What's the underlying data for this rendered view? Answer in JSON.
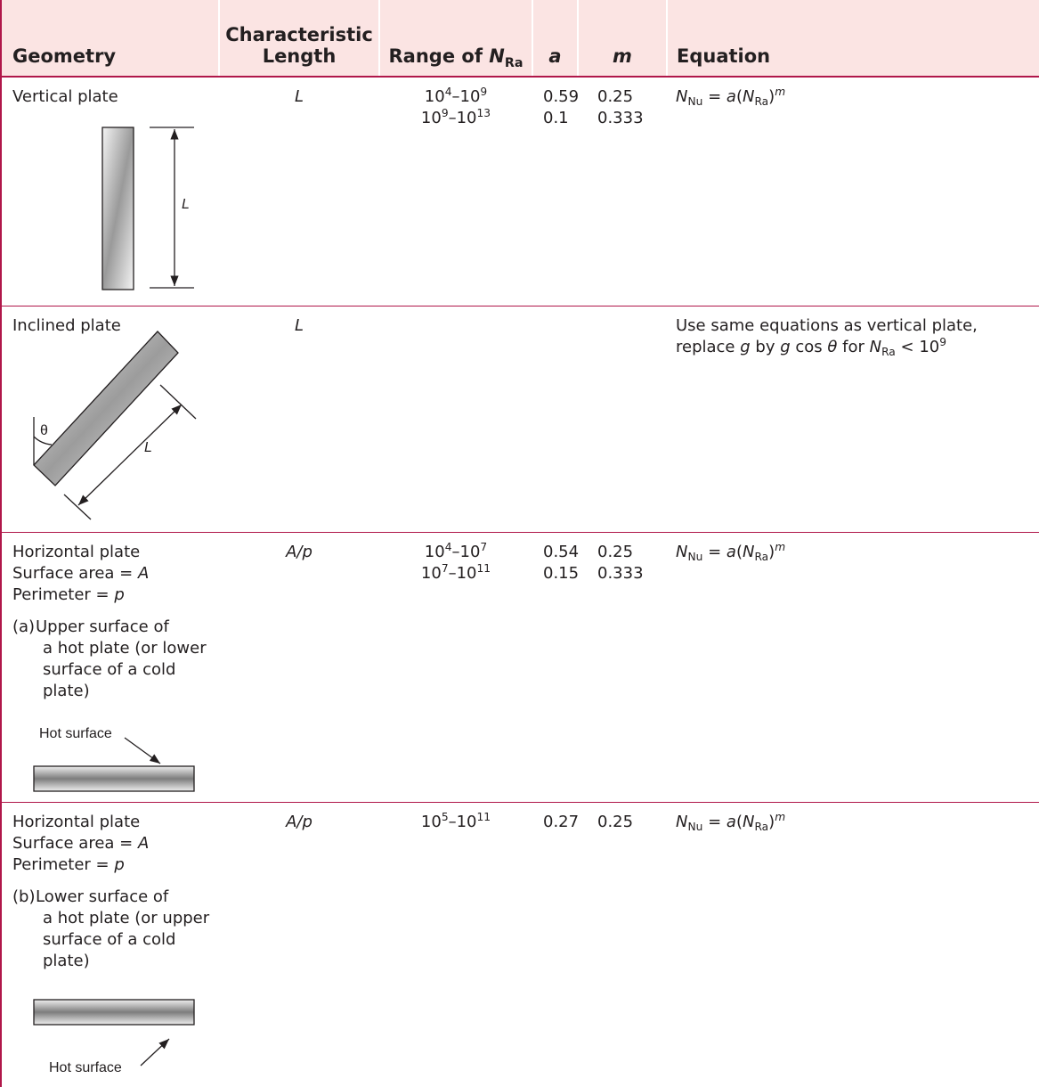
{
  "table": {
    "header": [
      "Geometry",
      "Characteristic Length",
      [
        {
          "text": "Range of "
        },
        {
          "text": "N",
          "style": "i"
        },
        {
          "text": "Ra",
          "style": "sub"
        }
      ],
      [
        {
          "text": "a",
          "style": "i"
        }
      ],
      [
        {
          "text": "m",
          "style": "i"
        }
      ],
      "Equation"
    ],
    "rows": [
      {
        "geometry": {
          "lines": [
            "Vertical plate"
          ],
          "diagram_labels": [
            "L"
          ]
        },
        "length": [
          {
            "text": "L",
            "style": "i"
          }
        ],
        "range": [
          [
            {
              "text": "10"
            },
            {
              "text": "4",
              "style": "sup"
            },
            {
              "text": "–10"
            },
            {
              "text": "9",
              "style": "sup"
            }
          ],
          [
            {
              "text": "10"
            },
            {
              "text": "9",
              "style": "sup"
            },
            {
              "text": "–10"
            },
            {
              "text": "13",
              "style": "sup"
            }
          ]
        ],
        "a": [
          0.59,
          0.1
        ],
        "m": [
          0.25,
          0.333
        ],
        "equation": [
          [
            {
              "text": "N",
              "style": "i"
            },
            {
              "text": "Nu",
              "style": "sub"
            },
            {
              "text": " = "
            },
            {
              "text": "a",
              "style": "i"
            },
            {
              "text": "("
            },
            {
              "text": "N",
              "style": "i"
            },
            {
              "text": "Ra",
              "style": "sub"
            },
            {
              "text": ")"
            },
            {
              "text": "m",
              "style": "i-sup"
            }
          ]
        ]
      },
      {
        "geometry": {
          "lines": [
            "Inclined plate"
          ],
          "diagram_labels": [
            "θ",
            "L"
          ]
        },
        "length": [
          {
            "text": "L",
            "style": "i"
          }
        ],
        "range": [],
        "a": [],
        "m": [],
        "equation": [
          "Use same equations as vertical plate,",
          [
            {
              "text": "replace "
            },
            {
              "text": "g",
              "style": "i"
            },
            {
              "text": " by "
            },
            {
              "text": "g",
              "style": "i"
            },
            {
              "text": " cos "
            },
            {
              "text": "θ",
              "style": "i"
            },
            {
              "text": " for "
            },
            {
              "text": "N",
              "style": "i"
            },
            {
              "text": "Ra",
              "style": "sub"
            },
            {
              "text": " < 10"
            },
            {
              "text": "9",
              "style": "sup"
            }
          ]
        ]
      },
      {
        "geometry": {
          "lines": [
            "Horizontal plate",
            [
              {
                "text": "Surface area = "
              },
              {
                "text": "A",
                "style": "i"
              }
            ],
            [
              {
                "text": "Perimeter = "
              },
              {
                "text": "p",
                "style": "i"
              }
            ]
          ],
          "note": {
            "label": "(a)",
            "lines": [
              "Upper surface of",
              "a hot plate (or lower",
              "surface of a cold plate)"
            ]
          },
          "diagram_labels": [
            "Hot surface"
          ]
        },
        "length": [
          {
            "text": "A/p",
            "style": "i"
          }
        ],
        "range": [
          [
            {
              "text": "10"
            },
            {
              "text": "4",
              "style": "sup"
            },
            {
              "text": "–10"
            },
            {
              "text": "7",
              "style": "sup"
            }
          ],
          [
            {
              "text": "10"
            },
            {
              "text": "7",
              "style": "sup"
            },
            {
              "text": "–10"
            },
            {
              "text": "11",
              "style": "sup"
            }
          ]
        ],
        "a": [
          0.54,
          0.15
        ],
        "m": [
          0.25,
          0.333
        ],
        "equation": [
          [
            {
              "text": "N",
              "style": "i"
            },
            {
              "text": "Nu",
              "style": "sub"
            },
            {
              "text": " = "
            },
            {
              "text": "a",
              "style": "i"
            },
            {
              "text": "("
            },
            {
              "text": "N",
              "style": "i"
            },
            {
              "text": "Ra",
              "style": "sub"
            },
            {
              "text": ")"
            },
            {
              "text": "m",
              "style": "i-sup"
            }
          ]
        ]
      },
      {
        "geometry": {
          "lines": [
            "Horizontal plate",
            [
              {
                "text": "Surface area = "
              },
              {
                "text": "A",
                "style": "i"
              }
            ],
            [
              {
                "text": "Perimeter = "
              },
              {
                "text": "p",
                "style": "i"
              }
            ]
          ],
          "note": {
            "label": "(b)",
            "lines": [
              "Lower surface of",
              "a hot plate (or upper",
              "surface of a cold plate)"
            ]
          },
          "diagram_labels": [
            "Hot surface"
          ]
        },
        "length": [
          {
            "text": "A/p",
            "style": "i"
          }
        ],
        "range": [
          [
            {
              "text": "10"
            },
            {
              "text": "5",
              "style": "sup"
            },
            {
              "text": "–10"
            },
            {
              "text": "11",
              "style": "sup"
            }
          ]
        ],
        "a": [
          0.27
        ],
        "m": [
          0.25
        ],
        "equation": [
          [
            {
              "text": "N",
              "style": "i"
            },
            {
              "text": "Nu",
              "style": "sub"
            },
            {
              "text": " = "
            },
            {
              "text": "a",
              "style": "i"
            },
            {
              "text": "("
            },
            {
              "text": "N",
              "style": "i"
            },
            {
              "text": "Ra",
              "style": "sub"
            },
            {
              "text": ")"
            },
            {
              "text": "m",
              "style": "i-sup"
            }
          ]
        ]
      }
    ]
  }
}
